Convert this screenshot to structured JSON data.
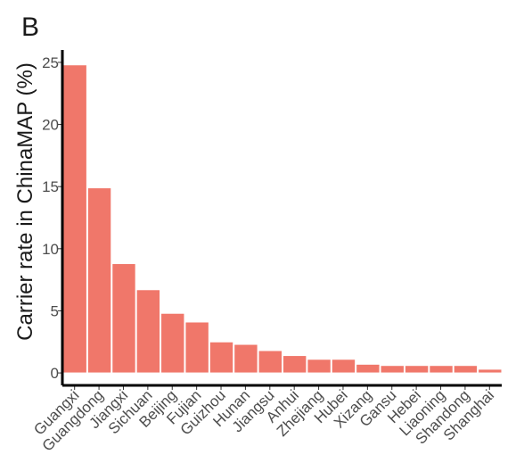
{
  "panel_label": "B",
  "chart_data": {
    "type": "bar",
    "ylabel": "Carrier rate in ChinaMAP (%)",
    "xlabel": "",
    "ylim": [
      -1,
      26
    ],
    "yticks": [
      0,
      5,
      10,
      15,
      20,
      25
    ],
    "categories": [
      "Guangxi",
      "Guangdong",
      "Jiangxi",
      "Sichuan",
      "Beijing",
      "Fujian",
      "Guizhou",
      "Hunan",
      "Jiangsu",
      "Anhui",
      "Zhejiang",
      "Hubei",
      "Xizang",
      "Gansu",
      "Hebei",
      "Liaoning",
      "Shandong",
      "Shanghai"
    ],
    "values": [
      24.8,
      14.9,
      8.8,
      6.7,
      4.8,
      4.1,
      2.5,
      2.3,
      1.8,
      1.4,
      1.1,
      1.1,
      0.7,
      0.6,
      0.6,
      0.6,
      0.6,
      0.3
    ],
    "bar_color": "#f0776a",
    "grid": false,
    "legend": "none"
  }
}
